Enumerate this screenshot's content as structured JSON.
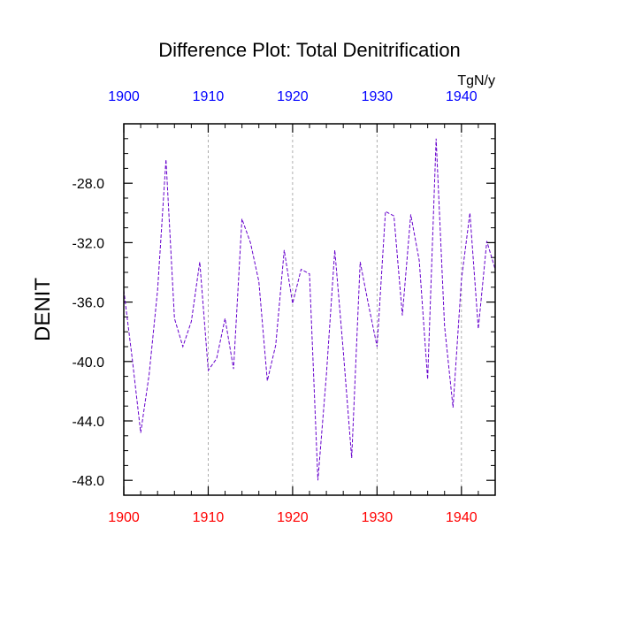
{
  "chart_data": {
    "type": "line",
    "title": "Difference Plot: Total Denitrification",
    "ylabel": "DENIT",
    "units_label": "TgN/y",
    "xlim": [
      1900,
      1944
    ],
    "ylim": [
      -49,
      -24
    ],
    "x_ticks": [
      1900,
      1910,
      1920,
      1930,
      1940
    ],
    "x_tick_labels": [
      "1900",
      "1910",
      "1920",
      "1930",
      "1940"
    ],
    "y_ticks": [
      -28,
      -32,
      -36,
      -40,
      -44,
      -48
    ],
    "y_tick_labels": [
      "-28.0",
      "-32.0",
      "-36.0",
      "-40.0",
      "-44.0",
      "-48.0"
    ],
    "grid": "vertical dashed at major x ticks",
    "series": [
      {
        "color": "#6600cc",
        "style": "dashed",
        "x": [
          1900,
          1901,
          1902,
          1903,
          1904,
          1905,
          1906,
          1907,
          1908,
          1909,
          1910,
          1911,
          1912,
          1913,
          1914,
          1915,
          1916,
          1917,
          1918,
          1919,
          1920,
          1921,
          1922,
          1923,
          1924,
          1925,
          1926,
          1927,
          1928,
          1929,
          1930,
          1931,
          1932,
          1933,
          1934,
          1935,
          1936,
          1937,
          1938,
          1939,
          1940,
          1941,
          1942,
          1943,
          1944
        ],
        "values": [
          -35.2,
          -39.8,
          -44.8,
          -40.9,
          -35.2,
          -26.4,
          -37.1,
          -39.0,
          -37.3,
          -33.3,
          -40.6,
          -39.8,
          -37.1,
          -40.5,
          -30.4,
          -32.0,
          -34.6,
          -41.3,
          -38.9,
          -32.5,
          -36.1,
          -33.8,
          -34.1,
          -48.0,
          -40.9,
          -32.5,
          -39.3,
          -46.5,
          -33.3,
          -36.2,
          -39.0,
          -29.9,
          -30.2,
          -36.9,
          -30.1,
          -33.2,
          -41.2,
          -25.0,
          -37.6,
          -43.1,
          -34.5,
          -30.0,
          -37.8,
          -31.9,
          -33.8
        ]
      }
    ],
    "colors": {
      "bottom_axis_labels": "#ff0000",
      "top_axis_labels": "#0000ff",
      "frame": "#000000",
      "grid": "#999999"
    }
  }
}
